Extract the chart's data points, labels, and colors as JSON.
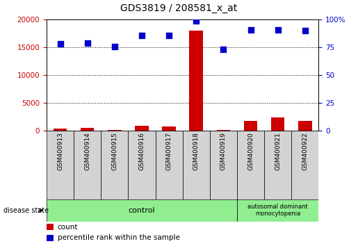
{
  "title": "GDS3819 / 208581_x_at",
  "samples": [
    "GSM400913",
    "GSM400914",
    "GSM400915",
    "GSM400916",
    "GSM400917",
    "GSM400918",
    "GSM400919",
    "GSM400920",
    "GSM400921",
    "GSM400922"
  ],
  "counts": [
    300,
    500,
    50,
    800,
    700,
    18000,
    100,
    1700,
    2300,
    1700
  ],
  "percentiles": [
    78,
    79,
    76,
    86,
    86,
    99,
    73,
    91,
    91,
    90
  ],
  "ylim_left": [
    0,
    20000
  ],
  "ylim_right": [
    0,
    100
  ],
  "yticks_left": [
    0,
    5000,
    10000,
    15000,
    20000
  ],
  "yticks_right": [
    0,
    25,
    50,
    75,
    100
  ],
  "bar_color": "#cc0000",
  "dot_color": "#0000cc",
  "tick_area_color": "#d3d3d3",
  "control_color": "#90ee90",
  "control_samples": 7,
  "disease_samples": 3,
  "control_label": "control",
  "disease_label": "autosomal dominant\nmonocytopenia",
  "disease_state_label": "disease state",
  "legend_count": "count",
  "legend_percentile": "percentile rank within the sample"
}
